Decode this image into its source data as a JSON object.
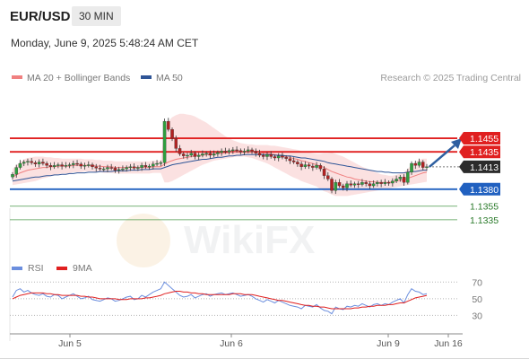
{
  "header": {
    "pair": "EUR/USD",
    "timeframe": "30 MIN"
  },
  "datetime": "Monday, June 9, 2025 5:48:24 AM CET",
  "legend": {
    "main": [
      {
        "label": "MA 20 + Bollinger Bands",
        "color": "#f08080"
      },
      {
        "label": "MA 50",
        "color": "#2f5597"
      }
    ],
    "rsi": [
      {
        "label": "RSI",
        "color": "#6b8ede"
      },
      {
        "label": "9MA",
        "color": "#e02020"
      }
    ]
  },
  "credit": "Research © 2025 Trading Central",
  "watermark": "WikiFX",
  "chart_data": {
    "type": "candlestick",
    "x_tick_labels": [
      "Jun 5",
      "Jun 6",
      "Jun 9",
      "Jun 16"
    ],
    "price_lines": [
      {
        "value": 1.1455,
        "label": "1.1455",
        "color": "#e02020",
        "kind": "resistance"
      },
      {
        "value": 1.1435,
        "label": "1.1435",
        "color": "#e02020",
        "kind": "resistance"
      },
      {
        "value": 1.1413,
        "label": "1.1413",
        "color": "#333333",
        "kind": "current"
      },
      {
        "value": 1.138,
        "label": "1.1380",
        "color": "#2060c0",
        "kind": "pivot"
      },
      {
        "value": 1.1355,
        "label": "1.1355",
        "color": "#2a8a2a",
        "kind": "support"
      },
      {
        "value": 1.1335,
        "label": "1.1335",
        "color": "#2a8a2a",
        "kind": "support"
      }
    ],
    "price_closes": [
      1.1402,
      1.1412,
      1.1418,
      1.142,
      1.1421,
      1.1419,
      1.1417,
      1.142,
      1.1418,
      1.1415,
      1.1413,
      1.1415,
      1.1416,
      1.1414,
      1.1415,
      1.1416,
      1.1418,
      1.1417,
      1.1414,
      1.1415,
      1.1416,
      1.1413,
      1.1411,
      1.141,
      1.141,
      1.1412,
      1.1411,
      1.1408,
      1.1409,
      1.141,
      1.1412,
      1.1413,
      1.1411,
      1.1412,
      1.1415,
      1.1413,
      1.1414,
      1.1417,
      1.1418,
      1.1419,
      1.148,
      1.1468,
      1.1455,
      1.144,
      1.1432,
      1.1429,
      1.143,
      1.1433,
      1.1428,
      1.143,
      1.1432,
      1.1433,
      1.143,
      1.1432,
      1.1434,
      1.1436,
      1.1435,
      1.1437,
      1.1438,
      1.1437,
      1.1435,
      1.1436,
      1.1438,
      1.1436,
      1.1433,
      1.143,
      1.1428,
      1.1431,
      1.1428,
      1.1426,
      1.1429,
      1.1427,
      1.1425,
      1.1422,
      1.142,
      1.1417,
      1.1413,
      1.1416,
      1.1414,
      1.1412,
      1.1415,
      1.141,
      1.14,
      1.1395,
      1.1378,
      1.139,
      1.1385,
      1.1382,
      1.1388,
      1.1386,
      1.1388,
      1.1387,
      1.139,
      1.1388,
      1.1385,
      1.1388,
      1.139,
      1.1388,
      1.139,
      1.1389,
      1.1392,
      1.1395,
      1.1398,
      1.139,
      1.1405,
      1.1418,
      1.1415,
      1.142,
      1.1412,
      1.1413
    ],
    "ma20": [
      1.1398,
      1.1401,
      1.1404,
      1.1406,
      1.1408,
      1.1409,
      1.141,
      1.1411,
      1.1412,
      1.1412,
      1.1413,
      1.1413,
      1.1414,
      1.1414,
      1.1414,
      1.1414,
      1.1415,
      1.1415,
      1.1415,
      1.1415,
      1.1415,
      1.1415,
      1.1414,
      1.1414,
      1.1413,
      1.1413,
      1.1413,
      1.1412,
      1.1412,
      1.1412,
      1.1412,
      1.1412,
      1.1412,
      1.1412,
      1.1412,
      1.1412,
      1.1412,
      1.1413,
      1.1413,
      1.1413,
      1.1417,
      1.142,
      1.1422,
      1.1424,
      1.1425,
      1.1426,
      1.1427,
      1.1428,
      1.1429,
      1.143,
      1.143,
      1.1431,
      1.1431,
      1.1432,
      1.1433,
      1.1433,
      1.1433,
      1.1434,
      1.1434,
      1.1435,
      1.1435,
      1.1435,
      1.1435,
      1.1435,
      1.1434,
      1.1434,
      1.1433,
      1.1433,
      1.1432,
      1.1431,
      1.143,
      1.1429,
      1.1428,
      1.1427,
      1.1425,
      1.1424,
      1.1422,
      1.1421,
      1.1419,
      1.1418,
      1.1416,
      1.1414,
      1.1412,
      1.1409,
      1.1406,
      1.1404,
      1.1402,
      1.14,
      1.1398,
      1.1397,
      1.1395,
      1.1394,
      1.1393,
      1.1392,
      1.1391,
      1.1391,
      1.139,
      1.139,
      1.139,
      1.139,
      1.1391,
      1.1392,
      1.1393,
      1.1394,
      1.1396,
      1.1398,
      1.14,
      1.1402,
      1.1404,
      1.1405
    ],
    "bb_upper": [
      1.141,
      1.1415,
      1.142,
      1.1424,
      1.1426,
      1.1427,
      1.1428,
      1.1428,
      1.1428,
      1.1427,
      1.1427,
      1.1426,
      1.1426,
      1.1425,
      1.1425,
      1.1425,
      1.1425,
      1.1425,
      1.1425,
      1.1424,
      1.1424,
      1.1424,
      1.1423,
      1.1423,
      1.1422,
      1.1422,
      1.1422,
      1.1421,
      1.1421,
      1.1421,
      1.1421,
      1.1421,
      1.1421,
      1.1421,
      1.1421,
      1.1421,
      1.1421,
      1.1422,
      1.1422,
      1.1422,
      1.147,
      1.148,
      1.1486,
      1.1489,
      1.1491,
      1.1491,
      1.149,
      1.1489,
      1.1487,
      1.1484,
      1.1481,
      1.1478,
      1.1474,
      1.147,
      1.1466,
      1.1462,
      1.1458,
      1.1455,
      1.1452,
      1.145,
      1.1448,
      1.1447,
      1.1446,
      1.1446,
      1.1445,
      1.1445,
      1.1445,
      1.1445,
      1.1444,
      1.1444,
      1.1443,
      1.1442,
      1.1441,
      1.144,
      1.1439,
      1.1438,
      1.1436,
      1.1435,
      1.1434,
      1.1433,
      1.1432,
      1.1432,
      1.1433,
      1.1433,
      1.1434,
      1.1432,
      1.143,
      1.1428,
      1.1425,
      1.1422,
      1.1419,
      1.1416,
      1.1413,
      1.1411,
      1.1408,
      1.1406,
      1.1404,
      1.1402,
      1.1401,
      1.14,
      1.14,
      1.1401,
      1.1403,
      1.1405,
      1.141,
      1.1416,
      1.142,
      1.1423,
      1.1425,
      1.1425
    ],
    "bb_lower": [
      1.1386,
      1.1387,
      1.1388,
      1.1389,
      1.139,
      1.1391,
      1.1392,
      1.1394,
      1.1396,
      1.1397,
      1.1399,
      1.14,
      1.1402,
      1.1403,
      1.1403,
      1.1403,
      1.1405,
      1.1405,
      1.1405,
      1.1406,
      1.1406,
      1.1406,
      1.1405,
      1.1405,
      1.1404,
      1.1404,
      1.1404,
      1.1403,
      1.1403,
      1.1403,
      1.1403,
      1.1403,
      1.1403,
      1.1403,
      1.1403,
      1.1403,
      1.1403,
      1.1404,
      1.1404,
      1.1404,
      1.139,
      1.139,
      1.1392,
      1.1395,
      1.1398,
      1.1401,
      1.1404,
      1.1407,
      1.141,
      1.1413,
      1.1416,
      1.1418,
      1.142,
      1.1422,
      1.1423,
      1.1424,
      1.1425,
      1.1426,
      1.1427,
      1.1428,
      1.1428,
      1.1428,
      1.1427,
      1.1426,
      1.1424,
      1.1422,
      1.142,
      1.1418,
      1.1415,
      1.1412,
      1.1409,
      1.1406,
      1.1403,
      1.14,
      1.1397,
      1.1395,
      1.1392,
      1.139,
      1.1388,
      1.1386,
      1.1384,
      1.138,
      1.1377,
      1.1375,
      1.1372,
      1.137,
      1.137,
      1.137,
      1.137,
      1.1371,
      1.1372,
      1.1373,
      1.1374,
      1.1375,
      1.1376,
      1.1377,
      1.1378,
      1.1379,
      1.138,
      1.1381,
      1.1382,
      1.1383,
      1.1384,
      1.1385,
      1.1386,
      1.1387,
      1.1388,
      1.1389,
      1.139,
      1.1391
    ],
    "ma50": [
      1.1392,
      1.1393,
      1.1394,
      1.1395,
      1.1396,
      1.1397,
      1.1398,
      1.1398,
      1.1399,
      1.14,
      1.14,
      1.1401,
      1.1401,
      1.1402,
      1.1402,
      1.1403,
      1.1403,
      1.1404,
      1.1404,
      1.1404,
      1.1405,
      1.1405,
      1.1405,
      1.1406,
      1.1406,
      1.1406,
      1.1406,
      1.1407,
      1.1407,
      1.1407,
      1.1407,
      1.1408,
      1.1408,
      1.1408,
      1.1409,
      1.1409,
      1.1409,
      1.141,
      1.141,
      1.141,
      1.1412,
      1.1414,
      1.1416,
      1.1417,
      1.1418,
      1.1419,
      1.142,
      1.1421,
      1.1422,
      1.1423,
      1.1424,
      1.1424,
      1.1425,
      1.1426,
      1.1427,
      1.1427,
      1.1428,
      1.1429,
      1.1429,
      1.143,
      1.143,
      1.1431,
      1.1431,
      1.1431,
      1.1431,
      1.1431,
      1.1431,
      1.1431,
      1.1431,
      1.143,
      1.143,
      1.143,
      1.1429,
      1.1429,
      1.1428,
      1.1427,
      1.1426,
      1.1426,
      1.1425,
      1.1424,
      1.1423,
      1.1422,
      1.1421,
      1.1419,
      1.1418,
      1.1417,
      1.1416,
      1.1415,
      1.1414,
      1.1413,
      1.1412,
      1.1411,
      1.141,
      1.1409,
      1.1408,
      1.1407,
      1.1406,
      1.1406,
      1.1405,
      1.1405,
      1.1404,
      1.1404,
      1.1404,
      1.1404,
      1.1405,
      1.1406,
      1.1406,
      1.1407,
      1.1408,
      1.1408
    ],
    "projection_to": 1.1455,
    "rsi": {
      "levels": [
        70,
        50,
        30
      ],
      "rsi_values": [
        52,
        60,
        62,
        58,
        60,
        57,
        55,
        54,
        56,
        53,
        52,
        55,
        54,
        50,
        52,
        54,
        56,
        53,
        50,
        51,
        53,
        49,
        48,
        47,
        49,
        51,
        50,
        47,
        48,
        50,
        52,
        53,
        49,
        50,
        54,
        52,
        55,
        58,
        60,
        62,
        70,
        66,
        62,
        58,
        54,
        52,
        53,
        55,
        51,
        53,
        55,
        56,
        53,
        55,
        56,
        57,
        55,
        56,
        57,
        55,
        53,
        54,
        55,
        53,
        50,
        48,
        46,
        49,
        47,
        45,
        48,
        46,
        44,
        42,
        41,
        40,
        38,
        42,
        41,
        40,
        43,
        39,
        36,
        35,
        32,
        40,
        38,
        37,
        41,
        40,
        42,
        41,
        44,
        42,
        40,
        43,
        44,
        42,
        44,
        43,
        46,
        48,
        50,
        45,
        55,
        62,
        59,
        58,
        55,
        56
      ],
      "ma9_values": [
        50,
        52,
        54,
        55,
        56,
        57,
        57,
        57,
        57,
        56,
        56,
        55,
        55,
        54,
        54,
        54,
        54,
        54,
        53,
        53,
        52,
        52,
        51,
        50,
        50,
        50,
        50,
        50,
        49,
        49,
        49,
        50,
        50,
        50,
        50,
        51,
        51,
        52,
        53,
        54,
        56,
        57,
        58,
        59,
        59,
        58,
        58,
        57,
        57,
        56,
        56,
        55,
        55,
        55,
        55,
        55,
        55,
        55,
        56,
        56,
        56,
        55,
        55,
        55,
        54,
        53,
        52,
        51,
        50,
        49,
        48,
        48,
        47,
        46,
        45,
        44,
        43,
        42,
        42,
        41,
        41,
        40,
        40,
        39,
        38,
        38,
        38,
        38,
        38,
        38,
        39,
        39,
        40,
        40,
        41,
        41,
        42,
        42,
        42,
        43,
        43,
        44,
        45,
        45,
        47,
        49,
        51,
        52,
        53,
        54
      ]
    }
  }
}
